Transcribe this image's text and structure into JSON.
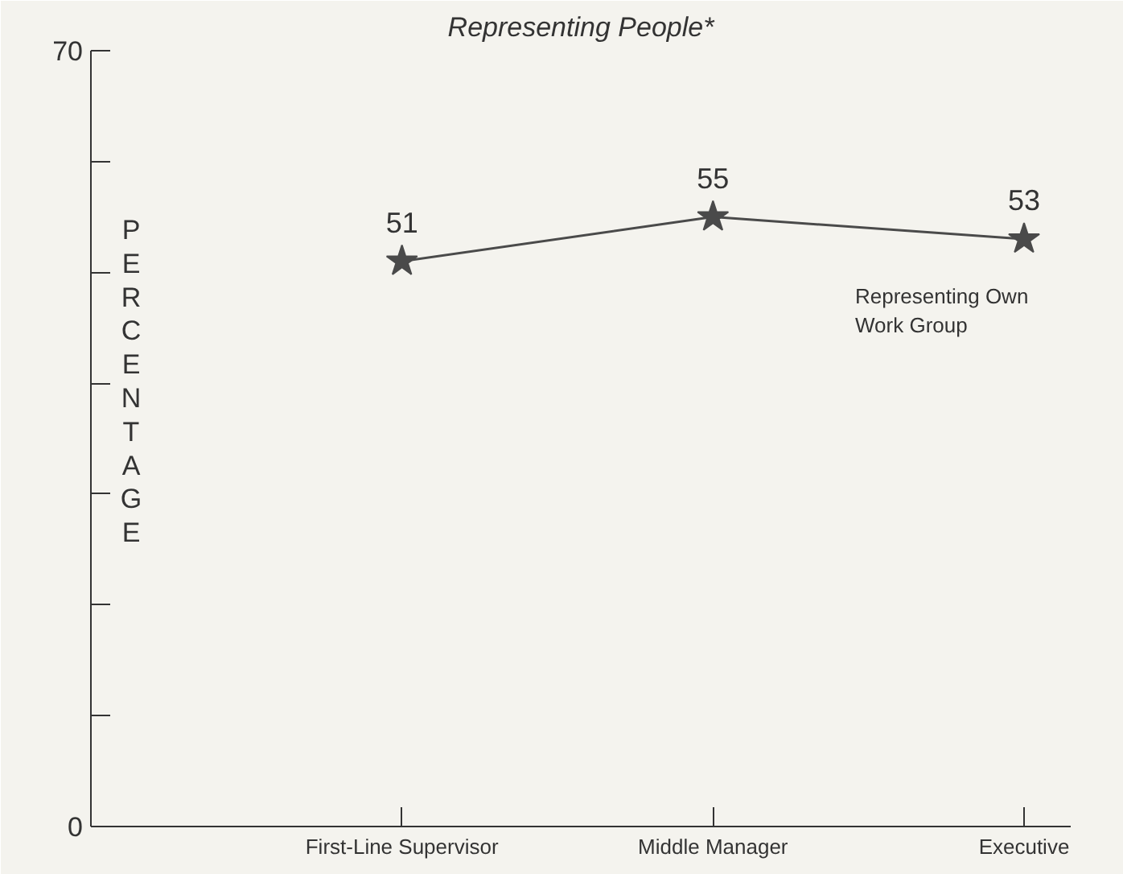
{
  "chart_data": {
    "type": "line",
    "title": "Representing People*",
    "ylabel": "PERCENTAGE",
    "categories": [
      "First-Line Supervisor",
      "Middle Manager",
      "Executive"
    ],
    "series": [
      {
        "name": "Representing Own Work Group",
        "color": "#4a4a4a",
        "values": [
          51,
          55,
          53
        ]
      }
    ],
    "ylim": [
      0,
      70
    ],
    "yticks": [
      0,
      {
        "value": 10,
        "label": null
      },
      {
        "value": 20,
        "label": null
      },
      {
        "value": 30,
        "label": null
      },
      {
        "value": 40,
        "label": null
      },
      {
        "value": 50,
        "label": null
      },
      {
        "value": 60,
        "label": null
      },
      70
    ],
    "marker": "star",
    "line_style": "solid",
    "data_labels": true,
    "grid": false,
    "legend": false
  }
}
